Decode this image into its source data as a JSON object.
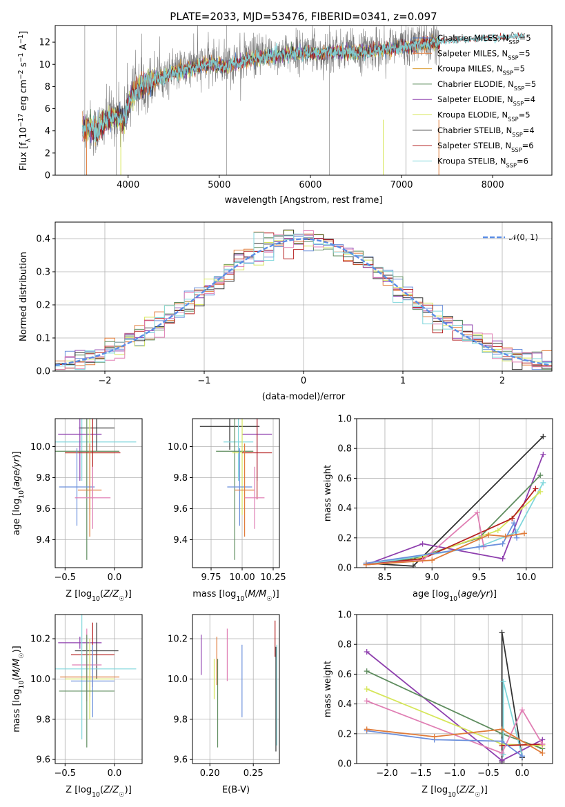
{
  "title": "PLATE=2033, MJD=53476, FIBERID=0341, z=0.097",
  "colors": {
    "Chabrier MILES": "#3f6fbf",
    "Salpeter MILES": "#e07b39",
    "Kroupa MILES": "#d99a2b",
    "Chabrier ELODIE": "#5e8c5e",
    "Salpeter ELODIE": "#8e3fae",
    "Kroupa ELODIE": "#d6e65a",
    "Chabrier STELIB": "#333333",
    "Salpeter STELIB": "#b52020",
    "Kroupa STELIB": "#7fd6db",
    "Salpeter MILES pink": "#e07fb4",
    "Chabrier MILES blue": "#6b8fdc",
    "normal": "#5b8ee6",
    "data": "#777777"
  },
  "chart_data": [
    {
      "id": "spectrum",
      "type": "line",
      "title": "PLATE=2033, MJD=53476, FIBERID=0341, z=0.097",
      "xlabel": "wavelength [Angstrom, rest frame]",
      "ylabel": "Flux [fλ10⁻¹⁷ erg cm⁻² s⁻¹ A⁻¹]",
      "xlim": [
        3200,
        8650
      ],
      "ylim": [
        0,
        13.5
      ],
      "xticks": [
        4000,
        5000,
        6000,
        7000,
        8000
      ],
      "yticks": [
        0,
        2,
        4,
        6,
        8,
        10,
        12
      ],
      "x_range_data": [
        3500,
        7420
      ],
      "continuum_knots": {
        "x": [
          3500,
          3550,
          3650,
          3750,
          3850,
          3950,
          4050,
          4150,
          4300,
          4500,
          4700,
          4900,
          5100,
          5300,
          5500,
          5700,
          5900,
          6100,
          6300,
          6500,
          6700,
          6900,
          7100,
          7300,
          7420
        ],
        "y": [
          4.2,
          4.5,
          4.0,
          5.0,
          5.5,
          5.2,
          7.5,
          8.2,
          8.8,
          9.3,
          9.8,
          10.2,
          10.0,
          10.5,
          10.8,
          11.0,
          11.2,
          11.1,
          11.3,
          11.2,
          11.4,
          11.6,
          11.8,
          12.0,
          12.1
        ]
      },
      "model_extension_x": [
        7420,
        8350
      ],
      "model_extension_y": [
        12.1,
        12.6
      ],
      "legend_location": "upper right",
      "legend": [
        {
          "label": "Chabrier MILES, N",
          "sub": "SSP",
          "n": "=5",
          "color_key": "Chabrier MILES"
        },
        {
          "label": "Salpeter MILES, N",
          "sub": "SSP",
          "n": "=5",
          "color_key": "Salpeter MILES"
        },
        {
          "label": "Kroupa MILES, N",
          "sub": "SSP",
          "n": "=5",
          "color_key": "Kroupa MILES"
        },
        {
          "label": "Chabrier ELODIE, N",
          "sub": "SSP",
          "n": "=5",
          "color_key": "Chabrier ELODIE"
        },
        {
          "label": "Salpeter ELODIE, N",
          "sub": "SSP",
          "n": "=4",
          "color_key": "Salpeter ELODIE"
        },
        {
          "label": "Kroupa ELODIE, N",
          "sub": "SSP",
          "n": "=5",
          "color_key": "Kroupa ELODIE"
        },
        {
          "label": "Chabrier STELIB, N",
          "sub": "SSP",
          "n": "=4",
          "color_key": "Chabrier STELIB"
        },
        {
          "label": "Salpeter STELIB, N",
          "sub": "SSP",
          "n": "=6",
          "color_key": "Salpeter STELIB"
        },
        {
          "label": "Kroupa STELIB, N",
          "sub": "SSP",
          "n": "=6",
          "color_key": "Kroupa STELIB"
        }
      ]
    },
    {
      "id": "residuals",
      "type": "line",
      "xlabel": "(data-model)/error",
      "ylabel": "Normed distribution",
      "xlim": [
        -2.5,
        2.5
      ],
      "ylim": [
        0,
        0.45
      ],
      "xticks": [
        -2,
        -1,
        0,
        1,
        2
      ],
      "yticks": [
        0.0,
        0.1,
        0.2,
        0.3,
        0.4
      ],
      "legend_location": "upper right",
      "legend": [
        {
          "label": "𝒩(0, 1)",
          "color_key": "normal"
        }
      ],
      "gaussian": {
        "mean": 0,
        "sigma": 1
      }
    },
    {
      "id": "age-vs-Z",
      "type": "scatter",
      "xlabel": "Z [log10(Z/Z☉)]",
      "ylabel": "age  [log10(age/yr)]",
      "xlim": [
        -0.6,
        0.28
      ],
      "ylim": [
        9.22,
        10.18
      ],
      "xticks": [
        -0.5,
        0.0
      ],
      "yticks": [
        9.4,
        9.6,
        9.8,
        10.0
      ],
      "points": [
        {
          "x": -0.33,
          "y": 10.03,
          "xerr": 0.55,
          "yerr": 0.25,
          "color_key": "Kroupa STELIB"
        },
        {
          "x": -0.18,
          "y": 10.12,
          "xerr": 0.18,
          "yerr": 0.15,
          "color_key": "Chabrier STELIB"
        },
        {
          "x": -0.35,
          "y": 10.08,
          "xerr": 0.22,
          "yerr": 0.3,
          "color_key": "Salpeter ELODIE"
        },
        {
          "x": -0.28,
          "y": 9.97,
          "xerr": 0.33,
          "yerr": 0.7,
          "color_key": "Chabrier ELODIE"
        },
        {
          "x": -0.25,
          "y": 9.96,
          "xerr": 0.25,
          "yerr": 0.4,
          "color_key": "Kroupa ELODIE"
        },
        {
          "x": -0.22,
          "y": 9.96,
          "xerr": 0.28,
          "yerr": 0.3,
          "color_key": "Salpeter STELIB"
        },
        {
          "x": -0.38,
          "y": 9.74,
          "xerr": 0.18,
          "yerr": 0.25,
          "color_key": "Chabrier MILES blue"
        },
        {
          "x": -0.25,
          "y": 9.72,
          "xerr": 0.12,
          "yerr": 0.3,
          "color_key": "Salpeter MILES"
        },
        {
          "x": -0.22,
          "y": 9.67,
          "xerr": 0.18,
          "yerr": 0.2,
          "color_key": "Salpeter MILES pink"
        }
      ]
    },
    {
      "id": "age-vs-mass",
      "type": "scatter",
      "xlabel": "mass [log10(M/M☉)]",
      "ylabel": "",
      "xlim": [
        9.6,
        10.3
      ],
      "ylim": [
        9.22,
        10.18
      ],
      "xticks": [
        9.75,
        10.0,
        10.25
      ],
      "yticks": [
        9.4,
        9.6,
        9.8,
        10.0
      ],
      "points": [
        {
          "x": 9.9,
          "y": 10.13,
          "xerr": 0.24,
          "yerr": 0.15,
          "color_key": "Chabrier STELIB"
        },
        {
          "x": 10.12,
          "y": 10.08,
          "xerr": 0.12,
          "yerr": 0.3,
          "color_key": "Salpeter ELODIE"
        },
        {
          "x": 9.97,
          "y": 10.03,
          "xerr": 0.12,
          "yerr": 0.25,
          "color_key": "Kroupa STELIB"
        },
        {
          "x": 9.94,
          "y": 9.97,
          "xerr": 0.15,
          "yerr": 0.7,
          "color_key": "Chabrier ELODIE"
        },
        {
          "x": 10.0,
          "y": 9.96,
          "xerr": 0.08,
          "yerr": 0.4,
          "color_key": "Kroupa ELODIE"
        },
        {
          "x": 10.12,
          "y": 9.96,
          "xerr": 0.12,
          "yerr": 0.3,
          "color_key": "Salpeter STELIB"
        },
        {
          "x": 9.98,
          "y": 9.74,
          "xerr": 0.1,
          "yerr": 0.25,
          "color_key": "Chabrier MILES blue"
        },
        {
          "x": 10.02,
          "y": 9.72,
          "xerr": 0.08,
          "yerr": 0.3,
          "color_key": "Salpeter MILES"
        },
        {
          "x": 10.1,
          "y": 9.67,
          "xerr": 0.08,
          "yerr": 0.2,
          "color_key": "Salpeter MILES pink"
        }
      ]
    },
    {
      "id": "mass-weight-vs-age",
      "type": "line",
      "xlabel": "age  [log10(age/yr)]",
      "ylabel": "mass weight",
      "xlim": [
        8.2,
        10.28
      ],
      "ylim": [
        0,
        1.0
      ],
      "xticks": [
        8.5,
        9.0,
        9.5,
        10.0
      ],
      "yticks": [
        0.0,
        0.2,
        0.4,
        0.6,
        0.8,
        1.0
      ],
      "series": [
        {
          "color_key": "Chabrier STELIB",
          "x": [
            8.3,
            8.8,
            10.18
          ],
          "y": [
            0.03,
            0.01,
            0.88
          ]
        },
        {
          "color_key": "Salpeter ELODIE",
          "x": [
            8.3,
            8.9,
            9.75,
            10.18
          ],
          "y": [
            0.02,
            0.16,
            0.06,
            0.76
          ]
        },
        {
          "color_key": "Chabrier ELODIE",
          "x": [
            8.3,
            8.8,
            9.5,
            10.15
          ],
          "y": [
            0.02,
            0.06,
            0.2,
            0.62
          ]
        },
        {
          "color_key": "Kroupa STELIB",
          "x": [
            8.3,
            9.5,
            9.9,
            10.18
          ],
          "y": [
            0.02,
            0.14,
            0.24,
            0.57
          ]
        },
        {
          "color_key": "Kroupa ELODIE",
          "x": [
            8.3,
            8.8,
            9.7,
            10.15
          ],
          "y": [
            0.02,
            0.05,
            0.25,
            0.51
          ]
        },
        {
          "color_key": "Salpeter STELIB",
          "x": [
            8.3,
            8.9,
            9.85,
            10.1
          ],
          "y": [
            0.02,
            0.06,
            0.33,
            0.53
          ]
        },
        {
          "color_key": "Salpeter MILES pink",
          "x": [
            8.3,
            8.9,
            9.48,
            9.55
          ],
          "y": [
            0.02,
            0.05,
            0.37,
            0.14
          ]
        },
        {
          "color_key": "Chabrier MILES blue",
          "x": [
            8.3,
            9.5,
            9.75,
            9.87,
            9.9
          ],
          "y": [
            0.03,
            0.14,
            0.16,
            0.3,
            0.2
          ]
        },
        {
          "color_key": "Salpeter MILES",
          "x": [
            8.3,
            9.0,
            9.6,
            9.78,
            9.98
          ],
          "y": [
            0.02,
            0.05,
            0.22,
            0.21,
            0.23
          ]
        }
      ]
    },
    {
      "id": "mass-vs-Z",
      "type": "scatter",
      "xlabel": "Z [log10(Z/Z☉)]",
      "ylabel": "mass [log10(M/M☉)]",
      "xlim": [
        -0.6,
        0.28
      ],
      "ylim": [
        9.58,
        10.32
      ],
      "xticks": [
        -0.5,
        0.0
      ],
      "yticks": [
        9.6,
        9.8,
        10.0,
        10.2
      ],
      "points": [
        {
          "x": -0.35,
          "y": 10.18,
          "xerr": 0.22,
          "yerr": 0.03,
          "color_key": "Salpeter ELODIE"
        },
        {
          "x": -0.18,
          "y": 10.14,
          "xerr": 0.22,
          "yerr": 0.14,
          "color_key": "Chabrier STELIB"
        },
        {
          "x": -0.22,
          "y": 10.12,
          "xerr": 0.22,
          "yerr": 0.16,
          "color_key": "Salpeter STELIB"
        },
        {
          "x": -0.28,
          "y": 10.07,
          "xerr": 0.15,
          "yerr": 0.18,
          "color_key": "Salpeter MILES pink"
        },
        {
          "x": -0.33,
          "y": 10.05,
          "xerr": 0.55,
          "yerr": 0.35,
          "color_key": "Kroupa STELIB"
        },
        {
          "x": -0.25,
          "y": 10.01,
          "xerr": 0.3,
          "yerr": 0.1,
          "color_key": "Salpeter MILES"
        },
        {
          "x": -0.25,
          "y": 10.0,
          "xerr": 0.25,
          "yerr": 0.2,
          "color_key": "Kroupa ELODIE"
        },
        {
          "x": -0.22,
          "y": 9.99,
          "xerr": 0.22,
          "yerr": 0.18,
          "color_key": "Chabrier MILES blue"
        },
        {
          "x": -0.28,
          "y": 9.94,
          "xerr": 0.28,
          "yerr": 0.28,
          "color_key": "Chabrier ELODIE"
        }
      ]
    },
    {
      "id": "mass-vs-EBV",
      "type": "scatter",
      "xlabel": "E(B-V)",
      "ylabel": "",
      "xlim": [
        0.18,
        0.28
      ],
      "ylim": [
        9.58,
        10.32
      ],
      "xticks": [
        0.2,
        0.25
      ],
      "yticks": [
        9.6,
        9.8,
        10.0,
        10.2
      ],
      "points": [
        {
          "x": 0.19,
          "y": 10.12,
          "yerr": 0.1,
          "color_key": "Salpeter ELODIE"
        },
        {
          "x": 0.205,
          "y": 10.0,
          "yerr": 0.1,
          "color_key": "Kroupa ELODIE"
        },
        {
          "x": 0.208,
          "y": 10.09,
          "yerr": 0.12,
          "color_key": "Salpeter MILES"
        },
        {
          "x": 0.209,
          "y": 9.88,
          "yerr": 0.22,
          "color_key": "Chabrier ELODIE"
        },
        {
          "x": 0.22,
          "y": 10.12,
          "yerr": 0.13,
          "color_key": "Salpeter MILES pink"
        },
        {
          "x": 0.237,
          "y": 9.99,
          "yerr": 0.18,
          "color_key": "Chabrier MILES blue"
        },
        {
          "x": 0.275,
          "y": 10.2,
          "yerr": 0.09,
          "color_key": "Salpeter STELIB"
        },
        {
          "x": 0.276,
          "y": 9.9,
          "yerr": 0.26,
          "color_key": "Chabrier STELIB"
        },
        {
          "x": 0.277,
          "y": 9.92,
          "yerr": 0.25,
          "color_key": "Kroupa STELIB"
        }
      ]
    },
    {
      "id": "mass-weight-vs-Z",
      "type": "line",
      "xlabel": "Z [log10(Z/Z☉)]",
      "ylabel": "mass weight",
      "xlim": [
        -2.45,
        0.45
      ],
      "ylim": [
        0,
        1.0
      ],
      "xticks": [
        -2.0,
        -1.5,
        -1.0,
        -0.5,
        0.0
      ],
      "yticks": [
        0.0,
        0.2,
        0.4,
        0.6,
        0.8,
        1.0
      ],
      "series": [
        {
          "color_key": "Chabrier STELIB",
          "x": [
            -0.3,
            -0.3,
            0.0
          ],
          "y": [
            0.01,
            0.88,
            0.04
          ]
        },
        {
          "color_key": "Salpeter ELODIE",
          "x": [
            -2.3,
            -0.3,
            0.3
          ],
          "y": [
            0.75,
            0.02,
            0.16
          ]
        },
        {
          "color_key": "Chabrier ELODIE",
          "x": [
            -2.3,
            -0.3,
            0.3
          ],
          "y": [
            0.62,
            0.2,
            0.1
          ]
        },
        {
          "color_key": "Kroupa STELIB",
          "x": [
            -0.28,
            -0.28,
            0.0
          ],
          "y": [
            0.06,
            0.55,
            0.05
          ]
        },
        {
          "color_key": "Kroupa ELODIE",
          "x": [
            -2.3,
            -0.3,
            0.3
          ],
          "y": [
            0.5,
            0.13,
            0.12
          ]
        },
        {
          "color_key": "Salpeter STELIB",
          "x": [
            -0.3,
            0.3
          ],
          "y": [
            0.12,
            0.13
          ]
        },
        {
          "color_key": "Salpeter MILES pink",
          "x": [
            -2.3,
            -0.3,
            0.0,
            0.3
          ],
          "y": [
            0.42,
            0.07,
            0.36,
            0.13
          ]
        },
        {
          "color_key": "Chabrier MILES blue",
          "x": [
            -2.3,
            -1.3,
            -0.3,
            0.0
          ],
          "y": [
            0.22,
            0.16,
            0.15,
            0.05
          ]
        },
        {
          "color_key": "Salpeter MILES",
          "x": [
            -2.3,
            -1.3,
            -0.3,
            0.3
          ],
          "y": [
            0.23,
            0.18,
            0.23,
            0.07
          ]
        }
      ]
    }
  ]
}
